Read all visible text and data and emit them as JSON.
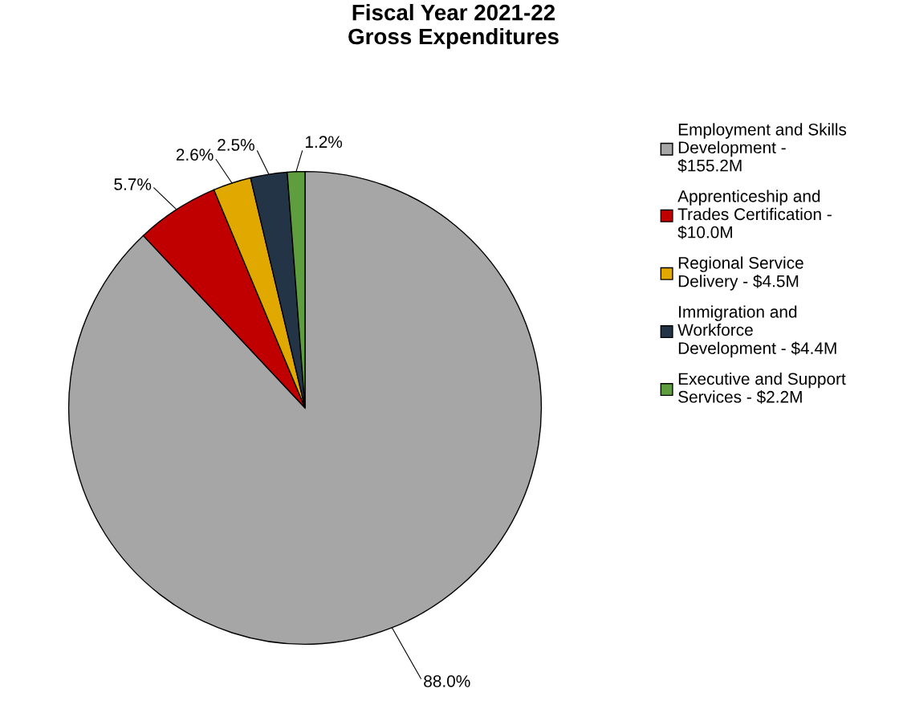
{
  "chart_data": {
    "type": "pie",
    "title": "Fiscal Year 2021-22\nGross Expenditures",
    "categories": [
      "Employment and Skills\nDevelopment -\n$155.2M",
      "Apprenticeship and\nTrades Certification -\n$10.0M",
      "Regional Service\nDelivery - $4.5M",
      "Immigration and\nWorkforce\nDevelopment - $4.4M",
      "Executive and Support\nServices - $2.2M"
    ],
    "values": [
      88.0,
      5.7,
      2.6,
      2.5,
      1.2
    ],
    "colors": [
      "#a6a6a6",
      "#c00000",
      "#e1a800",
      "#243447",
      "#5f9e3f"
    ],
    "value_labels": [
      "88.0%",
      "5.7%",
      "2.6%",
      "2.5%",
      "1.2%"
    ],
    "legend": "right"
  }
}
